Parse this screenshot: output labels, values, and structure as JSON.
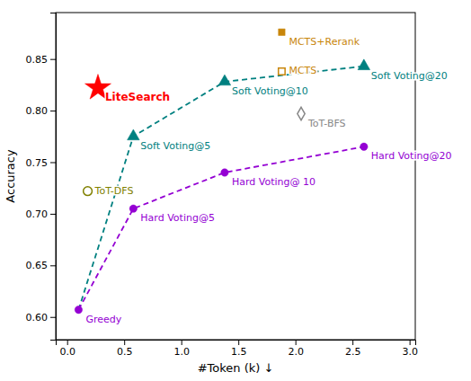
{
  "chart_data": {
    "type": "line",
    "x_label": "#Token (k) ↓",
    "y_label": "Accuracy",
    "xlim": [
      -0.1,
      3.05
    ],
    "ylim": [
      0.578,
      0.895
    ],
    "xticks": [
      {
        "value": 0,
        "label": "0.0"
      },
      0.5,
      {
        "value": 1,
        "label": "1.0"
      },
      1.5,
      {
        "value": 2,
        "label": "2.0"
      },
      2.5,
      {
        "value": 3,
        "label": "3.0"
      }
    ],
    "yticks": [
      {
        "value": 0.6,
        "label": "0.60"
      },
      0.65,
      {
        "value": 0.7,
        "label": "0.70"
      },
      0.75,
      {
        "value": 0.8,
        "label": "0.80"
      },
      0.85
    ],
    "grid": false,
    "series": [
      {
        "type": "line",
        "color": "#008080",
        "line_style": "dashed",
        "x": [
          0.1,
          0.58,
          1.38,
          2.6
        ],
        "values": [
          0.607,
          0.775,
          0.828,
          0.843
        ]
      },
      {
        "type": "line",
        "color": "#9400D3",
        "line_style": "dashed",
        "x": [
          0.1,
          0.58,
          1.38,
          2.6
        ],
        "values": [
          0.607,
          0.705,
          0.74,
          0.765
        ]
      },
      {
        "type": "scatter",
        "color": "#008080",
        "marker": "triangle",
        "x": [
          0.58,
          1.38,
          2.6
        ],
        "values": [
          0.775,
          0.828,
          0.843
        ],
        "labels": [
          "Soft Voting@5",
          "Soft Voting@10",
          "Soft Voting@20"
        ]
      },
      {
        "type": "scatter",
        "color": "#9400D3",
        "marker": "circle",
        "x": [
          0.1,
          0.58,
          1.38,
          2.6
        ],
        "values": [
          0.607,
          0.705,
          0.74,
          0.765
        ],
        "labels": [
          "Greedy",
          "Hard Voting@5",
          "Hard Voting@ 10",
          "Hard Voting@20"
        ]
      },
      {
        "type": "scatter",
        "color": "red",
        "marker": "star",
        "x": [
          0.27
        ],
        "values": [
          0.822
        ],
        "labels": [
          "LiteSearch"
        ]
      },
      {
        "type": "scatter",
        "color": "#808000",
        "marker": "circle-open",
        "x": [
          0.18
        ],
        "values": [
          0.722
        ],
        "labels": [
          "ToT-DFS"
        ]
      },
      {
        "type": "scatter",
        "color": "#888888",
        "marker": "diamond-open",
        "x": [
          2.05
        ],
        "values": [
          0.797
        ],
        "labels": [
          "ToT-BFS"
        ]
      },
      {
        "type": "scatter",
        "color": "#c8860b",
        "marker": "square-open",
        "x": [
          1.88
        ],
        "values": [
          0.838
        ],
        "labels": [
          "MCTS"
        ]
      },
      {
        "type": "scatter",
        "color": "#c8860b",
        "marker": "square",
        "x": [
          1.88
        ],
        "values": [
          0.876
        ],
        "labels": [
          "MCTS+Rerank"
        ]
      }
    ]
  }
}
